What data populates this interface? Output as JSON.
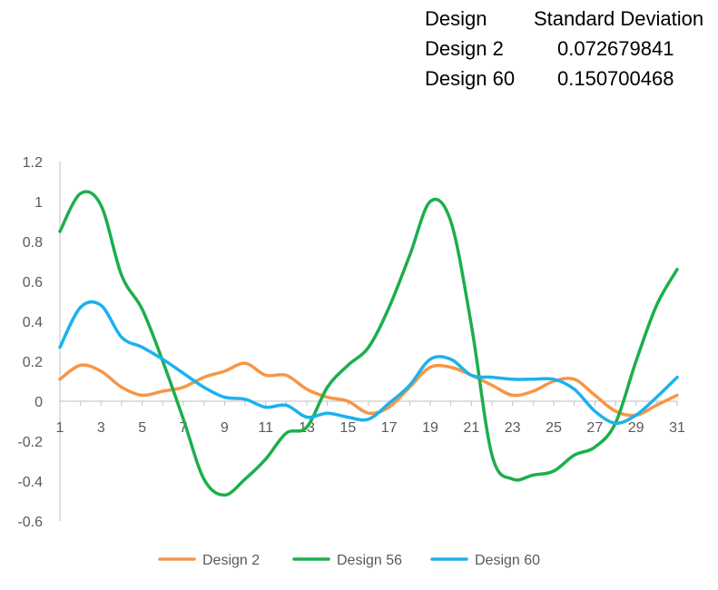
{
  "stats_table": {
    "headers": [
      "Design",
      "Standard Deviation"
    ],
    "rows": [
      [
        "Design 2",
        "0.072679841"
      ],
      [
        "Design 60",
        "0.150700468"
      ]
    ]
  },
  "chart_data": {
    "type": "line",
    "title": "",
    "xlabel": "",
    "ylabel": "",
    "x": [
      1,
      2,
      3,
      4,
      5,
      6,
      7,
      8,
      9,
      10,
      11,
      12,
      13,
      14,
      15,
      16,
      17,
      18,
      19,
      20,
      21,
      22,
      23,
      24,
      25,
      26,
      27,
      28,
      29,
      30,
      31
    ],
    "x_tick_labels": [
      "1",
      "3",
      "5",
      "7",
      "9",
      "11",
      "13",
      "15",
      "17",
      "19",
      "21",
      "23",
      "25",
      "27",
      "29",
      "31"
    ],
    "y_tick_labels": [
      "1.2",
      "1",
      "0.8",
      "0.6",
      "0.4",
      "0.2",
      "0",
      "-0.2",
      "-0.4",
      "-0.6"
    ],
    "ylim": [
      -0.6,
      1.2
    ],
    "grid": false,
    "legend_position": "bottom",
    "series": [
      {
        "name": "Design 2",
        "color": "#F79646",
        "values": [
          0.11,
          0.18,
          0.15,
          0.07,
          0.03,
          0.05,
          0.07,
          0.12,
          0.15,
          0.19,
          0.13,
          0.13,
          0.06,
          0.02,
          0.0,
          -0.06,
          -0.03,
          0.07,
          0.17,
          0.17,
          0.13,
          0.08,
          0.03,
          0.05,
          0.1,
          0.11,
          0.03,
          -0.05,
          -0.07,
          -0.02,
          0.03
        ]
      },
      {
        "name": "Design 56",
        "color": "#1BAF4B",
        "values": [
          0.85,
          1.04,
          0.98,
          0.63,
          0.46,
          0.2,
          -0.09,
          -0.39,
          -0.47,
          -0.39,
          -0.29,
          -0.16,
          -0.13,
          0.07,
          0.18,
          0.27,
          0.47,
          0.73,
          1.0,
          0.9,
          0.38,
          -0.27,
          -0.39,
          -0.37,
          -0.35,
          -0.27,
          -0.23,
          -0.11,
          0.2,
          0.48,
          0.66
        ]
      },
      {
        "name": "Design 60",
        "color": "#1BB2EE",
        "values": [
          0.27,
          0.47,
          0.48,
          0.32,
          0.27,
          0.21,
          0.14,
          0.07,
          0.02,
          0.01,
          -0.03,
          -0.02,
          -0.08,
          -0.06,
          -0.08,
          -0.09,
          -0.01,
          0.08,
          0.21,
          0.21,
          0.13,
          0.12,
          0.11,
          0.11,
          0.11,
          0.06,
          -0.05,
          -0.11,
          -0.07,
          0.02,
          0.12
        ]
      }
    ]
  }
}
